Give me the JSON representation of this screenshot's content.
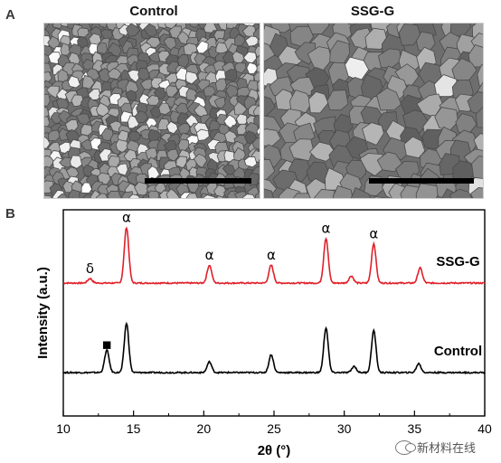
{
  "panel_a": {
    "letter": "A",
    "left_title": "Control",
    "right_title": "SSG-G"
  },
  "panel_b": {
    "letter": "B"
  },
  "watermark": {
    "text": "新材料在线",
    "icon": "wechat-icon"
  },
  "colors": {
    "ssg_g": "#e0202a",
    "control": "#000000"
  },
  "chart_data": {
    "type": "line",
    "xlabel": "2θ (°)",
    "ylabel": "Intensity (a.u.)",
    "xlim": [
      10,
      40
    ],
    "xticks": [
      "10",
      "15",
      "20",
      "25",
      "30",
      "35",
      "40"
    ],
    "yticks_visible": false,
    "grid": false,
    "series": [
      {
        "name": "SSG-G",
        "color": "#e0202a",
        "baseline": 1.0,
        "peaks": [
          {
            "x": 11.9,
            "h": 0.05
          },
          {
            "x": 14.5,
            "h": 0.62
          },
          {
            "x": 20.4,
            "h": 0.2
          },
          {
            "x": 24.8,
            "h": 0.2
          },
          {
            "x": 28.7,
            "h": 0.5
          },
          {
            "x": 30.5,
            "h": 0.08
          },
          {
            "x": 32.1,
            "h": 0.44
          },
          {
            "x": 35.4,
            "h": 0.17
          }
        ]
      },
      {
        "name": "Control",
        "color": "#000000",
        "baseline": 0.0,
        "peaks": [
          {
            "x": 13.1,
            "h": 0.25
          },
          {
            "x": 14.5,
            "h": 0.55
          },
          {
            "x": 20.4,
            "h": 0.12
          },
          {
            "x": 24.8,
            "h": 0.2
          },
          {
            "x": 28.7,
            "h": 0.5
          },
          {
            "x": 30.7,
            "h": 0.07
          },
          {
            "x": 32.1,
            "h": 0.47
          },
          {
            "x": 35.3,
            "h": 0.1
          }
        ]
      }
    ],
    "annotations": [
      {
        "text": "δ",
        "x": 11.9,
        "series": "SSG-G"
      },
      {
        "text": "α",
        "x": 14.5,
        "series": "SSG-G"
      },
      {
        "text": "α",
        "x": 20.4,
        "series": "SSG-G"
      },
      {
        "text": "α",
        "x": 24.8,
        "series": "SSG-G"
      },
      {
        "text": "α",
        "x": 28.7,
        "series": "SSG-G"
      },
      {
        "text": "α",
        "x": 32.1,
        "series": "SSG-G"
      },
      {
        "text": "■",
        "x": 13.1,
        "series": "Control"
      }
    ]
  }
}
